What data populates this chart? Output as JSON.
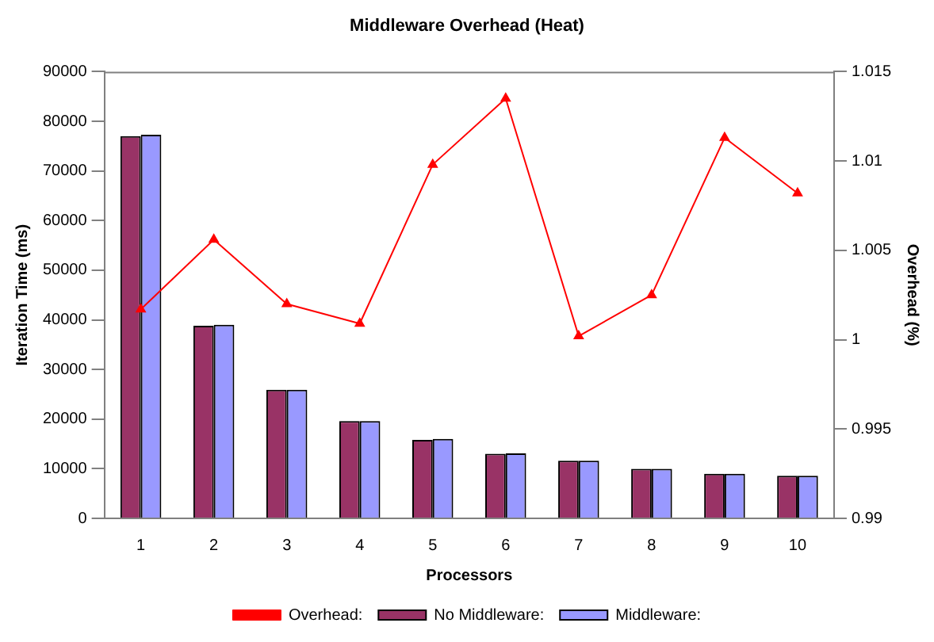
{
  "chart_data": {
    "type": "bar",
    "title": "Middleware Overhead (Heat)",
    "xlabel": "Processors",
    "ylabel": "Iteration Time (ms)",
    "y2label": "Overhead (%)",
    "categories": [
      "1",
      "2",
      "3",
      "4",
      "5",
      "6",
      "7",
      "8",
      "9",
      "10"
    ],
    "series": [
      {
        "name": "No Middleware:",
        "color": "#993366",
        "values": [
          77000,
          38800,
          25900,
          19600,
          15800,
          13000,
          11600,
          10000,
          9000,
          8600
        ]
      },
      {
        "name": "Middleware:",
        "color": "#9999ff",
        "values": [
          77300,
          39000,
          25900,
          19600,
          16000,
          13100,
          11600,
          10000,
          9000,
          8600
        ]
      },
      {
        "name": "Overhead:",
        "type": "line",
        "axis": "y2",
        "color": "#ff0000",
        "marker": "triangle",
        "line_style": "solid",
        "values": [
          1.0017,
          1.0056,
          1.002,
          1.0009,
          1.0098,
          1.0135,
          1.0002,
          1.0025,
          1.0113,
          1.0082
        ]
      }
    ],
    "ylim": [
      0,
      90000
    ],
    "yticks": [
      0,
      10000,
      20000,
      30000,
      40000,
      50000,
      60000,
      70000,
      80000,
      90000
    ],
    "y2lim": [
      0.99,
      1.015
    ],
    "y2ticks": [
      0.99,
      0.995,
      1,
      1.005,
      1.01,
      1.015
    ],
    "grid": false,
    "legend": "bottom"
  }
}
